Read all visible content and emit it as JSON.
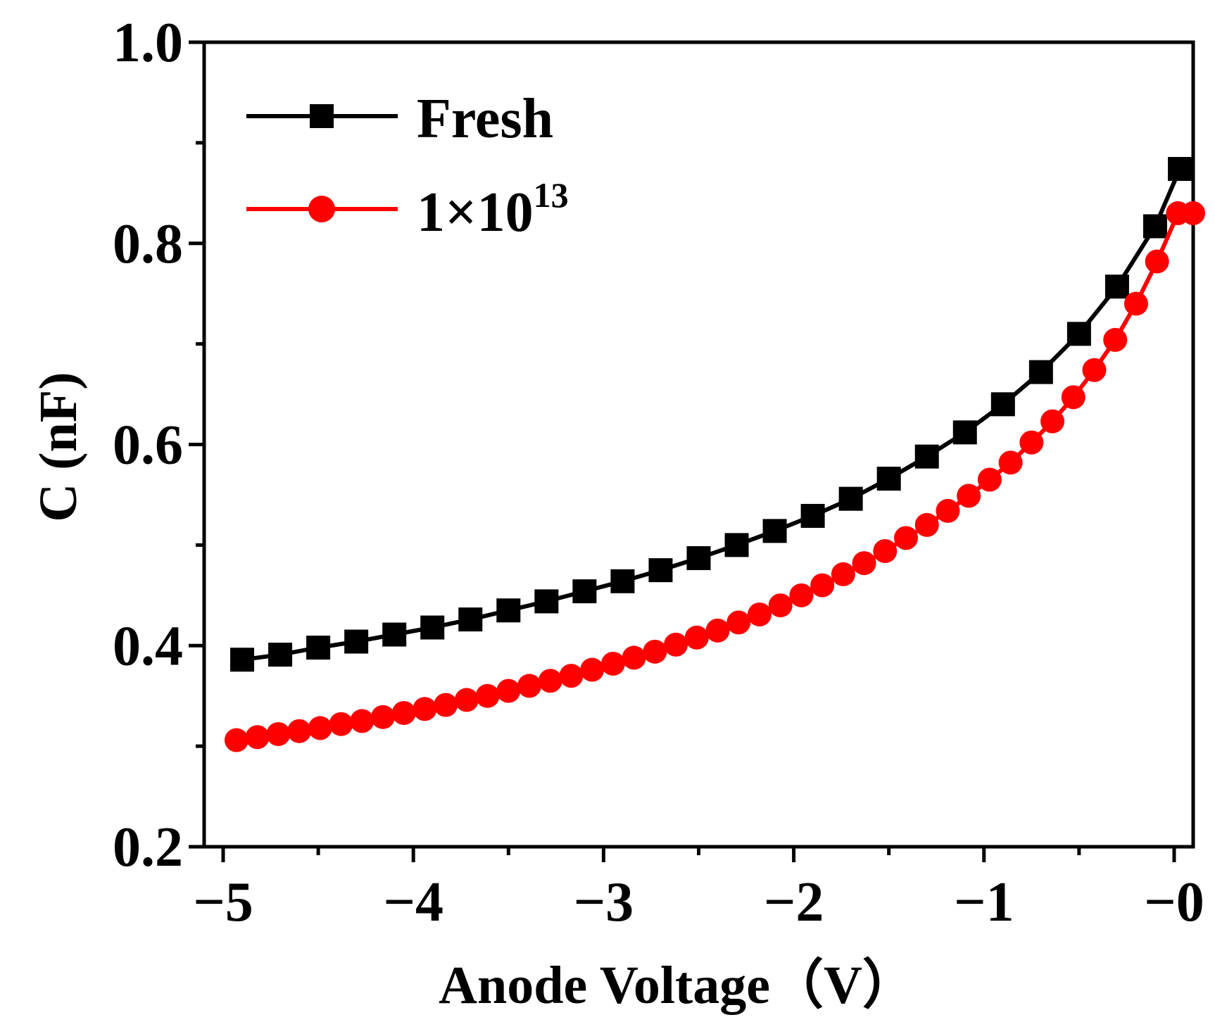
{
  "chart_data": {
    "type": "line",
    "title": "",
    "xlabel": "Anode Voltage（V）",
    "ylabel": "C (nF)",
    "xlim": [
      -5.1,
      0.1
    ],
    "ylim": [
      0.2,
      1.0
    ],
    "x_ticks": [
      -5,
      -4,
      -3,
      -2,
      -1,
      0
    ],
    "x_tick_labels": [
      "−5",
      "−4",
      "−3",
      "−2",
      "−1",
      "−0"
    ],
    "x_minor_ticks": [
      -4.5,
      -3.5,
      -2.5,
      -1.5,
      -0.5
    ],
    "y_ticks": [
      0.2,
      0.4,
      0.6,
      0.8,
      1.0
    ],
    "y_tick_labels": [
      "0.2",
      "0.4",
      "0.6",
      "0.8",
      "1.0"
    ],
    "y_minor_ticks": [
      0.3,
      0.5,
      0.7,
      0.9
    ],
    "legend_position": "top-left",
    "grid": false,
    "series": [
      {
        "name": "Fresh",
        "color": "#000000",
        "marker": "square",
        "x": [
          -4.9,
          -4.7,
          -4.5,
          -4.3,
          -4.1,
          -3.9,
          -3.7,
          -3.5,
          -3.3,
          -3.1,
          -2.9,
          -2.7,
          -2.5,
          -2.3,
          -2.1,
          -1.9,
          -1.7,
          -1.5,
          -1.3,
          -1.1,
          -0.9,
          -0.7,
          -0.5,
          -0.3,
          -0.1,
          0.03
        ],
        "y": [
          0.386,
          0.391,
          0.398,
          0.404,
          0.411,
          0.418,
          0.426,
          0.435,
          0.444,
          0.454,
          0.464,
          0.475,
          0.487,
          0.5,
          0.514,
          0.529,
          0.546,
          0.566,
          0.588,
          0.612,
          0.64,
          0.672,
          0.71,
          0.757,
          0.817,
          0.874
        ]
      },
      {
        "name": "1×10",
        "name_superscript": "13",
        "color": "#ff0000",
        "marker": "circle",
        "x": [
          -4.93,
          -4.82,
          -4.71,
          -4.6,
          -4.49,
          -4.38,
          -4.27,
          -4.16,
          -4.05,
          -3.94,
          -3.83,
          -3.72,
          -3.61,
          -3.5,
          -3.39,
          -3.28,
          -3.17,
          -3.06,
          -2.95,
          -2.84,
          -2.73,
          -2.62,
          -2.51,
          -2.4,
          -2.29,
          -2.18,
          -2.07,
          -1.96,
          -1.85,
          -1.74,
          -1.63,
          -1.52,
          -1.41,
          -1.3,
          -1.19,
          -1.08,
          -0.97,
          -0.86,
          -0.75,
          -0.64,
          -0.53,
          -0.42,
          -0.31,
          -0.2,
          -0.09,
          0.02,
          0.1
        ],
        "y": [
          0.306,
          0.309,
          0.312,
          0.315,
          0.318,
          0.322,
          0.325,
          0.329,
          0.333,
          0.337,
          0.341,
          0.346,
          0.35,
          0.355,
          0.36,
          0.365,
          0.37,
          0.376,
          0.382,
          0.388,
          0.394,
          0.401,
          0.408,
          0.415,
          0.423,
          0.431,
          0.44,
          0.45,
          0.46,
          0.471,
          0.482,
          0.494,
          0.507,
          0.52,
          0.534,
          0.549,
          0.565,
          0.582,
          0.602,
          0.623,
          0.647,
          0.674,
          0.704,
          0.74,
          0.782,
          0.83,
          0.83
        ]
      }
    ]
  }
}
